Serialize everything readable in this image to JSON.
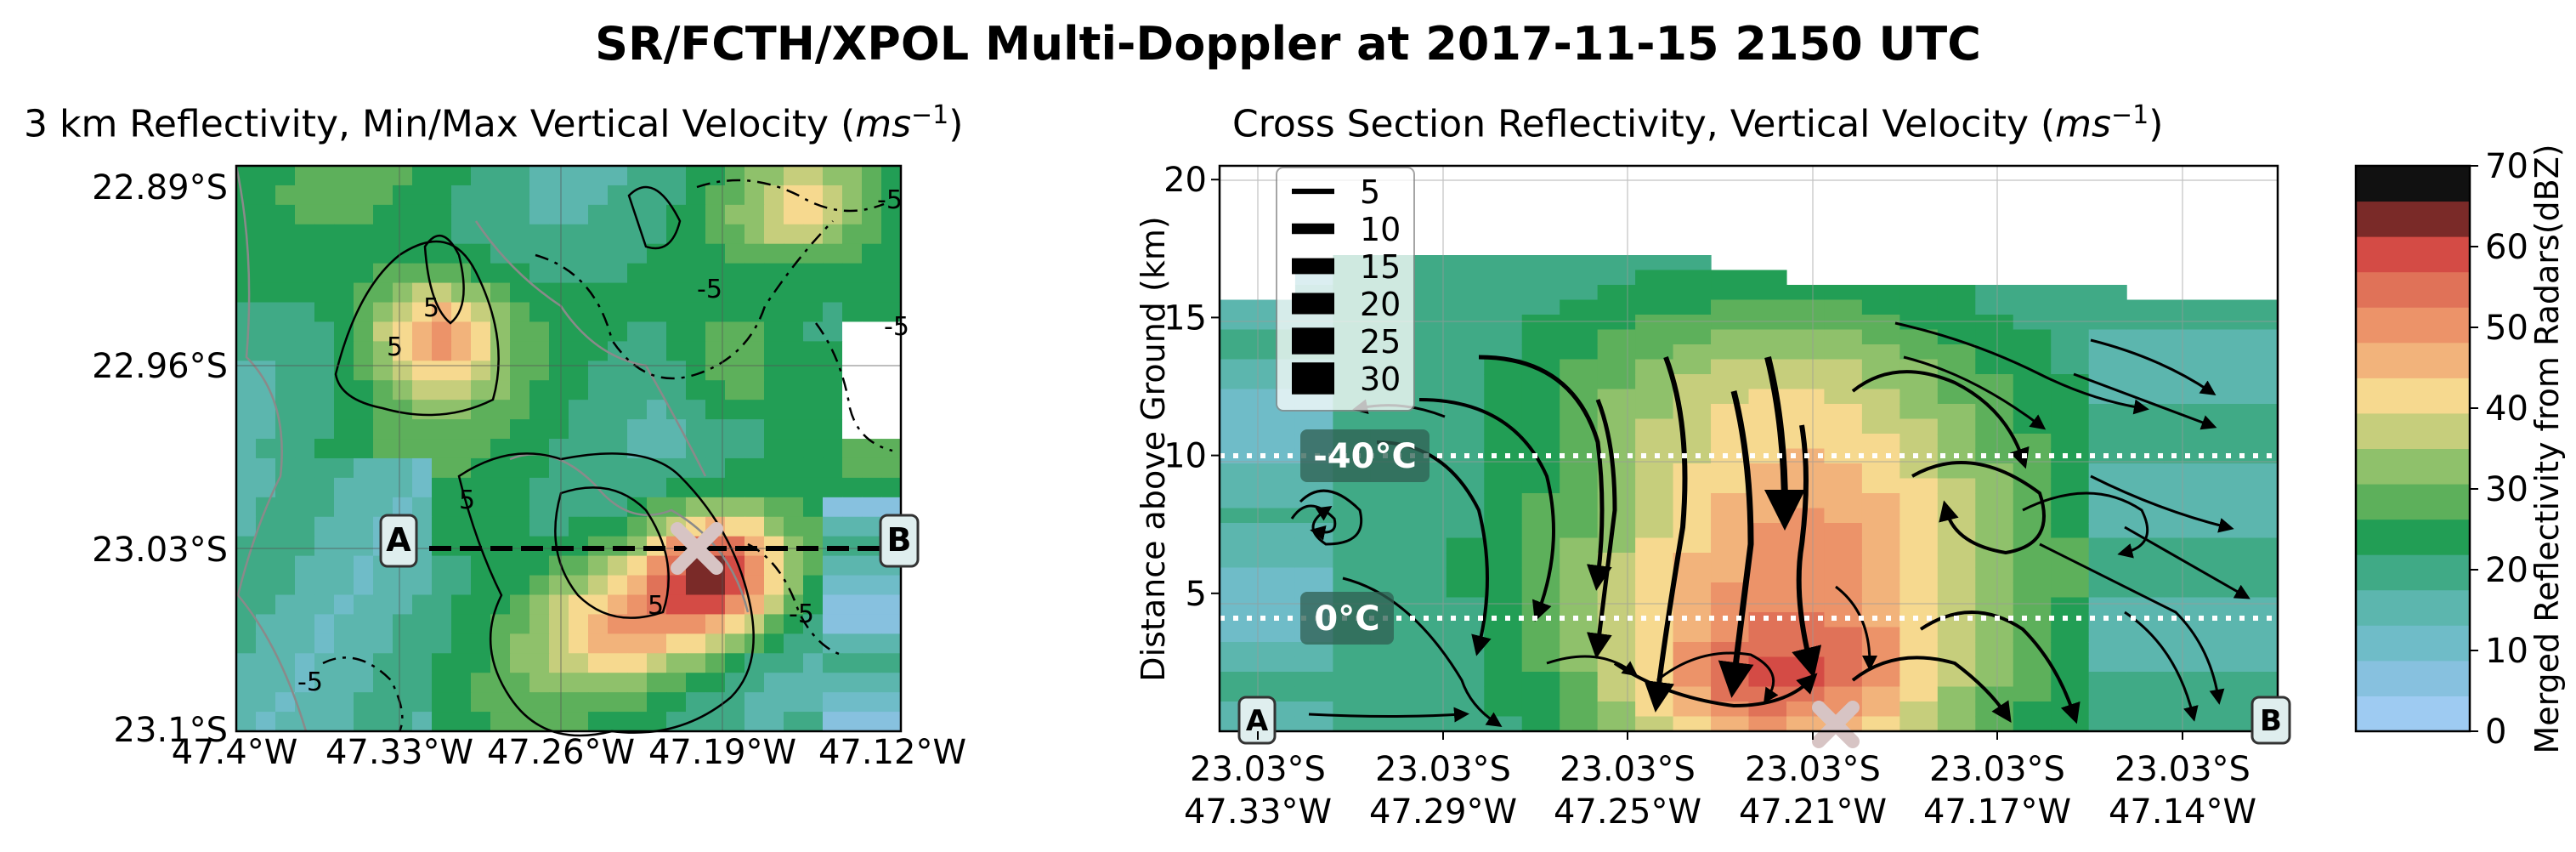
{
  "title": "SR/FCTH/XPOL Multi-Doppler at 2017-11-15 2150 UTC",
  "left_panel": {
    "title_text": "3 km Reflectivity, Min/Max Vertical Velocity (",
    "title_unit": "ms",
    "title_exp": "−1",
    "title_close": ")",
    "lat_ticks": [
      "22.89°S",
      "22.96°S",
      "23.03°S",
      "23.1°S"
    ],
    "lon_ticks": [
      "47.4°W",
      "47.33°W",
      "47.26°W",
      "47.19°W",
      "47.12°W"
    ],
    "contour_labels": [
      "5",
      "-5"
    ],
    "marker_a": "A",
    "marker_b": "B"
  },
  "right_panel": {
    "title_text": "Cross Section Reflectivity, Vertical Velocity (",
    "title_unit": "ms",
    "title_exp": "−1",
    "title_close": ")",
    "ylabel": "Distance above Ground (km)",
    "isotherm_labels": [
      "-40°C",
      "0°C"
    ],
    "marker_a": "A",
    "marker_b": "B"
  },
  "colorbar": {
    "label": "Merged Reflectivity from Radars(dBZ)"
  },
  "chart_data": [
    {
      "type": "heatmap",
      "title": "3 km Reflectivity, Min/Max Vertical Velocity (ms−1)",
      "ylim": [
        -23.1,
        -22.86
      ],
      "xlim": [
        -47.4,
        -47.12
      ],
      "y_ticks": [
        "22.89°S",
        "22.96°S",
        "23.03°S",
        "23.1°S"
      ],
      "x_ticks": [
        "47.4°W",
        "47.33°W",
        "47.26°W",
        "47.19°W",
        "47.12°W"
      ],
      "contour_levels": [
        -5,
        5
      ],
      "cross_section_line": {
        "from": "A",
        "to": "B",
        "lat": -23.03,
        "lon_range": [
          -47.33,
          -47.12
        ]
      },
      "max_marker": {
        "lat": -23.035,
        "lon": -47.2
      },
      "grid": true
    },
    {
      "type": "heatmap",
      "title": "Cross Section Reflectivity, Vertical Velocity (ms−1)",
      "ylabel": "Distance above Ground (km)",
      "ylim": [
        0,
        20.5
      ],
      "y_ticks": [
        5,
        10,
        15,
        20
      ],
      "x_ticks": [
        "23.03°S 47.33°W",
        "23.03°S 47.29°W",
        "23.03°S 47.25°W",
        "23.03°S 47.21°W",
        "23.03°S 47.17°W",
        "23.03°S 47.14°W"
      ],
      "isotherms": [
        {
          "label": "-40°C",
          "height_km": 10.2
        },
        {
          "label": "0°C",
          "height_km": 4.5
        }
      ],
      "streamline_width_legend": [
        5,
        10,
        15,
        20,
        25,
        30
      ],
      "legend_position": "top-left",
      "grid": true
    },
    {
      "type": "colorbar",
      "label": "Merged Reflectivity from Radars(dBZ)",
      "range": [
        0,
        70
      ],
      "ticks": [
        0,
        10,
        20,
        30,
        40,
        50,
        60,
        70
      ],
      "colors": [
        "#9ecbf2",
        "#87c1df",
        "#6fbcc8",
        "#5cb6ae",
        "#40aa86",
        "#229e55",
        "#5db05b",
        "#8fc16b",
        "#c6ce7c",
        "#f6d98f",
        "#f2b37b",
        "#ec9369",
        "#e07258",
        "#d44b45",
        "#7a2a28",
        "#111111"
      ]
    }
  ]
}
